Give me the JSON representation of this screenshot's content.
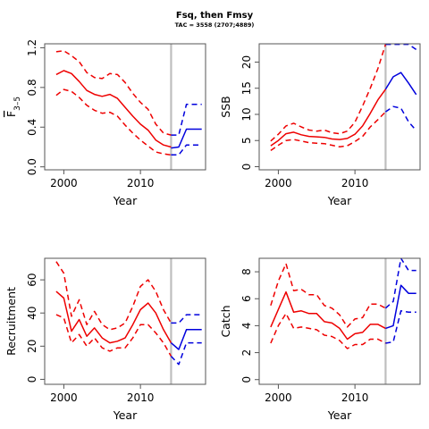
{
  "figure": {
    "title": "Fsq, then Fmsy",
    "subtitle": "TAC = 3558 (2707;4889)"
  },
  "chart_data": [
    {
      "type": "line",
      "xlabel": "Year",
      "ylabel": "F",
      "ylabel_subscript": "3–5",
      "xlim": [
        1997.5,
        2018.5
      ],
      "ylim": [
        -0.03,
        1.24
      ],
      "xticks": [
        2000,
        2010
      ],
      "yticks": [
        0.0,
        0.4,
        0.8,
        1.2
      ],
      "ytick_labels": [
        "0.0",
        "0.4",
        "0.8",
        "1.2"
      ],
      "vline_x": 2014,
      "historical_years": [
        1999,
        2000,
        2001,
        2002,
        2003,
        2004,
        2005,
        2006,
        2007,
        2008,
        2009,
        2010,
        2011,
        2012,
        2013,
        2014
      ],
      "historical": {
        "central": [
          0.93,
          0.97,
          0.94,
          0.86,
          0.77,
          0.73,
          0.71,
          0.73,
          0.69,
          0.6,
          0.51,
          0.43,
          0.37,
          0.27,
          0.22,
          0.2
        ],
        "upper": [
          1.16,
          1.17,
          1.12,
          1.06,
          0.95,
          0.9,
          0.89,
          0.94,
          0.93,
          0.85,
          0.74,
          0.65,
          0.58,
          0.43,
          0.34,
          0.32
        ],
        "lower": [
          0.72,
          0.78,
          0.76,
          0.7,
          0.62,
          0.57,
          0.54,
          0.55,
          0.51,
          0.42,
          0.34,
          0.27,
          0.21,
          0.15,
          0.13,
          0.12
        ]
      },
      "projection_years": [
        2014,
        2015,
        2016,
        2017,
        2018
      ],
      "projection": {
        "central": [
          0.19,
          0.2,
          0.38,
          0.38,
          0.38
        ],
        "upper": [
          0.32,
          0.32,
          0.63,
          0.63,
          0.63
        ],
        "lower": [
          0.12,
          0.12,
          0.22,
          0.22,
          0.22
        ]
      }
    },
    {
      "type": "line",
      "xlabel": "Year",
      "ylabel": "SSB",
      "xlim": [
        1997.5,
        2018.5
      ],
      "ylim": [
        -0.6,
        23.5
      ],
      "xticks": [
        2000,
        2010
      ],
      "yticks": [
        0,
        5,
        10,
        15,
        20
      ],
      "ytick_labels": [
        "0",
        "5",
        "10",
        "15",
        "20"
      ],
      "vline_x": 2014,
      "historical_years": [
        1999,
        2000,
        2001,
        2002,
        2003,
        2004,
        2005,
        2006,
        2007,
        2008,
        2009,
        2010,
        2011,
        2012,
        2013,
        2014
      ],
      "historical": {
        "central": [
          4.0,
          5.0,
          6.3,
          6.6,
          6.1,
          5.8,
          5.7,
          5.6,
          5.3,
          5.2,
          5.4,
          6.2,
          7.8,
          10.2,
          12.8,
          14.8
        ],
        "upper": [
          4.9,
          6.2,
          7.8,
          8.3,
          7.6,
          7.0,
          6.8,
          7.0,
          6.5,
          6.3,
          6.8,
          8.5,
          11.6,
          15.0,
          18.8,
          23.4
        ],
        "lower": [
          3.1,
          4.1,
          5.0,
          5.2,
          4.9,
          4.6,
          4.5,
          4.4,
          4.1,
          3.8,
          4.0,
          4.8,
          5.8,
          7.6,
          9.0,
          10.5
        ]
      },
      "projection_years": [
        2014,
        2015,
        2016,
        2017,
        2018
      ],
      "projection": {
        "central": [
          14.8,
          17.2,
          18.0,
          16.0,
          13.8
        ],
        "upper": [
          23.4,
          23.4,
          23.4,
          23.4,
          22.4
        ],
        "lower": [
          10.5,
          11.5,
          11.2,
          8.6,
          6.9
        ]
      }
    },
    {
      "type": "line",
      "xlabel": "Year",
      "ylabel": "Recruitment",
      "xlim": [
        1997.5,
        2018.5
      ],
      "ylim": [
        -3.0,
        73.0
      ],
      "xticks": [
        2000,
        2010
      ],
      "yticks": [
        0,
        20,
        40,
        60
      ],
      "ytick_labels": [
        "0",
        "20",
        "40",
        "60"
      ],
      "vline_x": 2014,
      "historical_years": [
        1999,
        2000,
        2001,
        2002,
        2003,
        2004,
        2005,
        2006,
        2007,
        2008,
        2009,
        2010,
        2011,
        2012,
        2013,
        2014
      ],
      "historical": {
        "central": [
          53,
          49,
          29,
          36,
          26,
          31,
          25,
          22,
          23,
          25,
          33,
          42,
          46,
          40,
          30,
          22
        ],
        "upper": [
          71,
          64,
          38,
          48,
          33,
          41,
          33,
          30,
          31,
          34,
          44,
          56,
          60,
          53,
          42,
          34
        ],
        "lower": [
          39,
          37,
          22,
          27,
          20,
          25,
          19,
          17,
          19,
          19,
          25,
          33,
          33,
          28,
          22,
          14
        ]
      },
      "projection_years": [
        2014,
        2015,
        2016,
        2017,
        2018
      ],
      "projection": {
        "central": [
          22,
          18,
          30,
          30,
          30
        ],
        "upper": [
          34,
          34,
          39,
          39,
          39
        ],
        "lower": [
          14,
          9,
          22,
          22,
          22
        ]
      }
    },
    {
      "type": "line",
      "xlabel": "Year",
      "ylabel": "Catch",
      "xlim": [
        1997.5,
        2018.5
      ],
      "ylim": [
        -0.35,
        9.0
      ],
      "xticks": [
        2000,
        2010
      ],
      "yticks": [
        0,
        2,
        4,
        6,
        8
      ],
      "ytick_labels": [
        "0",
        "2",
        "4",
        "6",
        "8"
      ],
      "vline_x": 2014,
      "historical_years": [
        1999,
        2000,
        2001,
        2002,
        2003,
        2004,
        2005,
        2006,
        2007,
        2008,
        2009,
        2010,
        2011,
        2012,
        2013,
        2014
      ],
      "historical": {
        "central": [
          3.9,
          5.2,
          6.5,
          5.0,
          5.1,
          4.9,
          4.9,
          4.3,
          4.2,
          3.8,
          3.0,
          3.4,
          3.5,
          4.1,
          4.1,
          3.8
        ],
        "upper": [
          5.5,
          7.3,
          8.6,
          6.6,
          6.7,
          6.3,
          6.3,
          5.5,
          5.3,
          4.8,
          3.9,
          4.5,
          4.6,
          5.6,
          5.6,
          5.3
        ],
        "lower": [
          2.7,
          4.0,
          4.9,
          3.8,
          3.9,
          3.8,
          3.7,
          3.3,
          3.2,
          2.9,
          2.3,
          2.6,
          2.6,
          3.0,
          3.0,
          2.7
        ]
      },
      "projection_years": [
        2014,
        2015,
        2016,
        2017,
        2018
      ],
      "projection": {
        "central": [
          3.8,
          4.0,
          7.0,
          6.4,
          6.4
        ],
        "upper": [
          5.3,
          5.8,
          9.0,
          8.1,
          8.1
        ],
        "lower": [
          2.7,
          2.8,
          5.1,
          5.0,
          5.0
        ]
      }
    }
  ],
  "colors": {
    "historical": "#ee0000",
    "projection": "#0000dd",
    "vline": "#bebebe",
    "frame": "#555555"
  }
}
